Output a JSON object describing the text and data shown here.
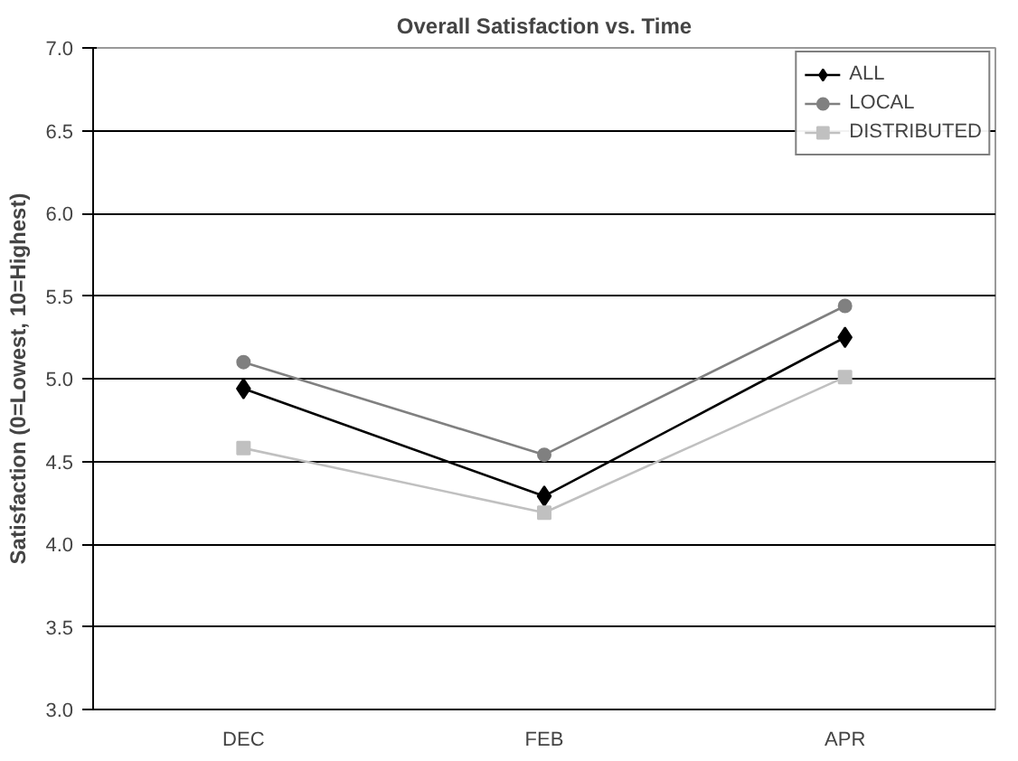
{
  "chart_data": {
    "type": "line",
    "title": "Overall Satisfaction vs. Time",
    "ylabel": "Satisfaction (0=Lowest, 10=Highest)",
    "categories": [
      "DEC",
      "FEB",
      "APR"
    ],
    "series": [
      {
        "name": "ALL",
        "color": "#000000",
        "marker": "diamond",
        "values": [
          4.94,
          4.29,
          5.25
        ]
      },
      {
        "name": "LOCAL",
        "color": "#808080",
        "marker": "circle",
        "values": [
          5.1,
          4.54,
          5.44
        ]
      },
      {
        "name": "DISTRIBUTED",
        "color": "#c0c0c0",
        "marker": "square",
        "values": [
          4.58,
          4.19,
          5.01
        ]
      }
    ],
    "ylim": [
      3.0,
      7.0
    ],
    "yticks": [
      {
        "value": 3,
        "label": "3.0"
      },
      {
        "value": 3.5,
        "label": "3.5"
      },
      {
        "value": 4,
        "label": "4.0"
      },
      {
        "value": 4.5,
        "label": "4.5"
      },
      {
        "value": 5,
        "label": "5.0"
      },
      {
        "value": 5.5,
        "label": "5.5"
      },
      {
        "value": 6,
        "label": "6.0"
      },
      {
        "value": 6.5,
        "label": "6.5"
      },
      {
        "value": 7,
        "label": "7.0"
      }
    ],
    "grid": "y",
    "legend": "top right"
  }
}
